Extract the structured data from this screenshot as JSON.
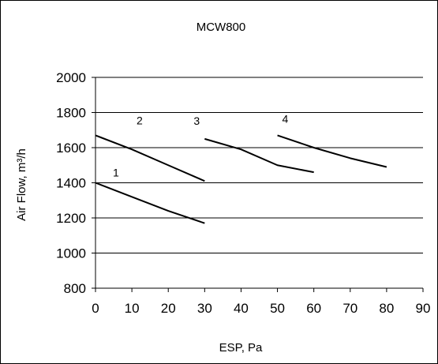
{
  "chart_data": {
    "type": "line",
    "title": "MCW800",
    "xlabel": "ESP, Pa",
    "ylabel": "Air Flow, m³/h",
    "xlim": [
      0,
      90
    ],
    "ylim": [
      800,
      2000
    ],
    "xticks": [
      0,
      10,
      20,
      30,
      40,
      50,
      60,
      70,
      80,
      90
    ],
    "yticks": [
      800,
      1000,
      1200,
      1400,
      1600,
      1800,
      2000
    ],
    "grid": "horizontal",
    "legend": "none",
    "line_color": "#000000",
    "series": [
      {
        "name": "1",
        "x": [
          0,
          10,
          20,
          30
        ],
        "y": [
          1400,
          1320,
          1240,
          1170
        ]
      },
      {
        "name": "2",
        "x": [
          0,
          10,
          20,
          30
        ],
        "y": [
          1670,
          1590,
          1500,
          1410
        ]
      },
      {
        "name": "3",
        "x": [
          30,
          40,
          50,
          60
        ],
        "y": [
          1650,
          1590,
          1500,
          1460
        ]
      },
      {
        "name": "4",
        "x": [
          50,
          60,
          70,
          80
        ],
        "y": [
          1670,
          1600,
          1540,
          1490
        ]
      }
    ]
  }
}
